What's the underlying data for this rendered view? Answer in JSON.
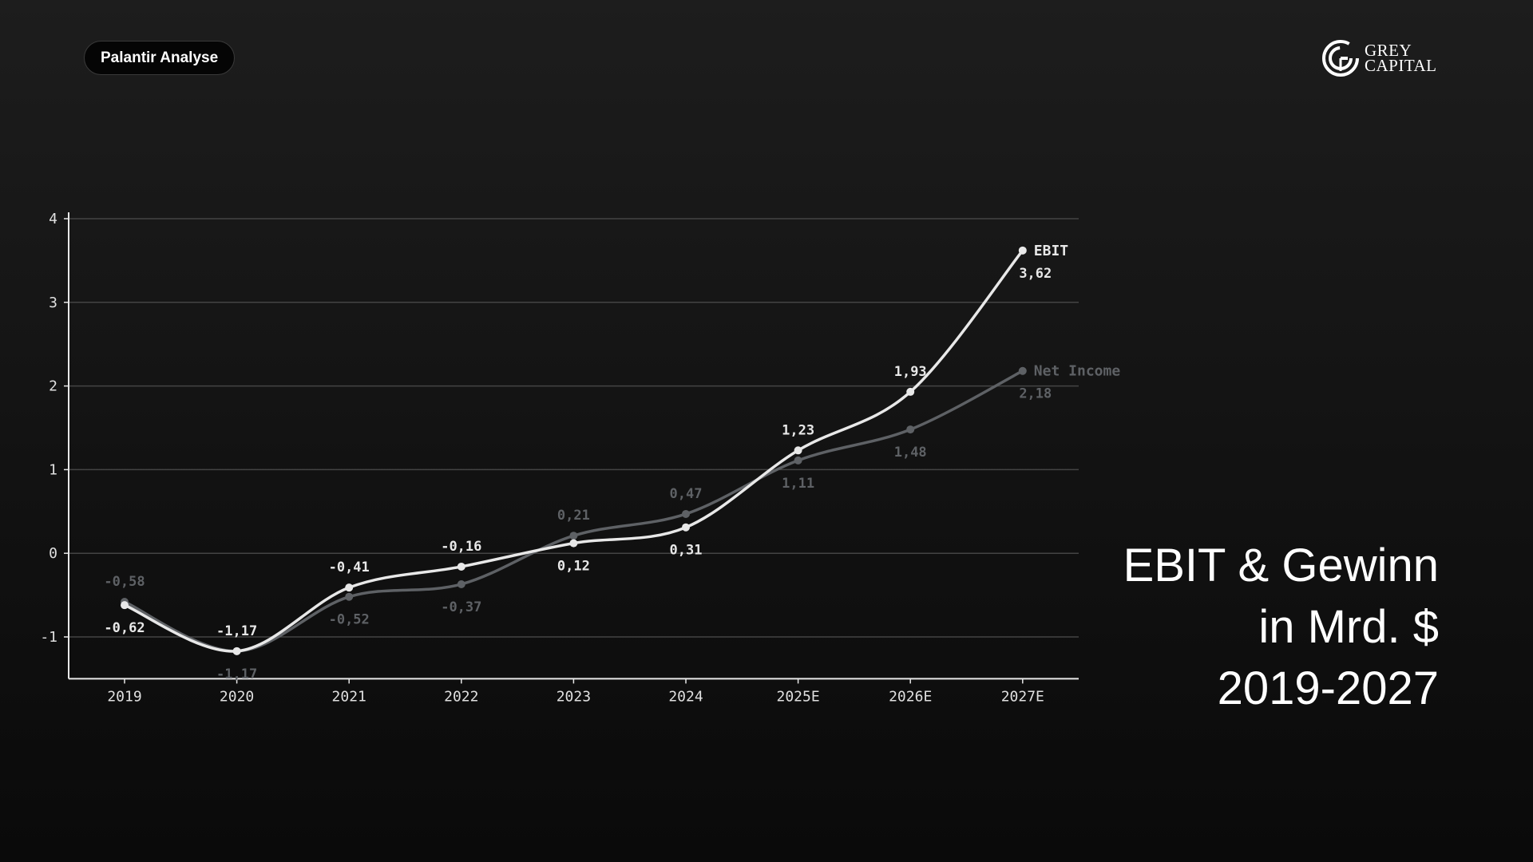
{
  "header": {
    "badge_label": "Palantir Analyse",
    "logo_line1": "GREY",
    "logo_line2": "CAPITAL"
  },
  "title": {
    "line1": "EBIT & Gewinn",
    "line2": "in Mrd. $",
    "line3": "2019-2027"
  },
  "colors": {
    "ebit": "#e8e8e8",
    "net_income": "#5e6165",
    "grid": "#444444",
    "axis": "#e8e8e8"
  },
  "chart_data": {
    "type": "line",
    "title": "EBIT & Gewinn in Mrd. $ 2019-2027",
    "categories": [
      "2019",
      "2020",
      "2021",
      "2022",
      "2023",
      "2024",
      "2025E",
      "2026E",
      "2027E"
    ],
    "yticks": [
      "4",
      "3",
      "2",
      "1",
      "0",
      "-1"
    ],
    "ylim": [
      -1.5,
      4
    ],
    "grid": true,
    "series": [
      {
        "name": "EBIT",
        "values": [
          -0.62,
          -1.17,
          -0.41,
          -0.16,
          0.12,
          0.31,
          1.23,
          1.93,
          3.62
        ],
        "labels": [
          "-0,62",
          "-1,17",
          "-0,41",
          "-0,16",
          "0,12",
          "0,31",
          "1,23",
          "1,93",
          "3,62"
        ]
      },
      {
        "name": "Net Income",
        "values": [
          -0.58,
          -1.17,
          -0.52,
          -0.37,
          0.21,
          0.47,
          1.11,
          1.48,
          2.18
        ],
        "labels": [
          "-0,58",
          "-1,17",
          "-0,52",
          "-0,37",
          "0,21",
          "0,47",
          "1,11",
          "1,48",
          "2,18"
        ]
      }
    ]
  }
}
